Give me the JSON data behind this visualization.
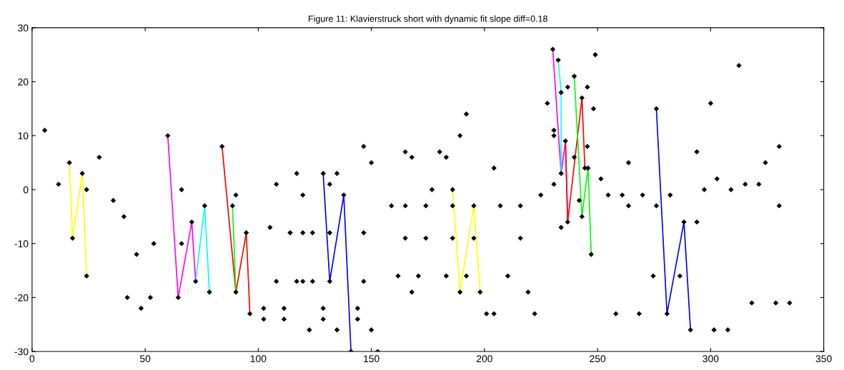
{
  "chart_data": {
    "type": "scatter",
    "title": "Figure 11: Klavierstruck short with dynamic fit slope diff=0.18",
    "xlim": [
      0,
      350
    ],
    "ylim": [
      -30,
      30
    ],
    "xticks": [
      0,
      50,
      100,
      150,
      200,
      250,
      300,
      350
    ],
    "yticks": [
      -30,
      -20,
      -10,
      0,
      10,
      20,
      30
    ],
    "grid": false,
    "legend": false,
    "series": [
      {
        "marker": "diamond",
        "color": "#000000",
        "x": [
          5.6,
          11.7,
          16.5,
          17.9,
          22.2,
          24.1,
          24.1,
          29.7,
          35.9,
          40.6,
          42.1,
          46.2,
          48.2,
          52.3,
          53.8,
          60,
          64.6,
          70.6,
          72.3,
          66.1,
          66.1,
          76.3,
          78.4,
          84,
          90.1,
          94.7,
          96.3,
          88.6,
          90.1,
          102.4,
          102.4,
          105.2,
          108,
          108,
          111.4,
          111.4,
          114.1,
          117,
          119.7,
          119.7,
          117,
          119.7,
          122.6,
          124,
          124,
          128.7,
          131.6,
          137.8,
          141,
          131.6,
          131.6,
          128.7,
          128.7,
          134.8,
          134.8,
          143.9,
          143.9,
          146.6,
          146.6,
          146.6,
          150,
          150,
          152.8,
          158.9,
          161.8,
          165,
          165,
          165,
          167.9,
          167.9,
          170.8,
          174.1,
          174.1,
          176.8,
          180.2,
          183.1,
          183.1,
          185.9,
          189.2,
          195.3,
          198.1,
          185.9,
          185.9,
          189.2,
          192,
          192,
          195.3,
          200.9,
          204.2,
          204.2,
          207,
          210.3,
          215.9,
          215.9,
          219.3,
          222.2,
          224.9,
          227.8,
          230.2,
          232.6,
          233.9,
          233.9,
          235.8,
          236.8,
          230.7,
          230.7,
          230.7,
          233.9,
          236.8,
          239.7,
          241.9,
          243.1,
          243.1,
          244.4,
          245.5,
          245.5,
          245.8,
          247.2,
          239.7,
          248.2,
          249,
          251.5,
          254.7,
          260.9,
          263.7,
          263.7,
          258.1,
          268.4,
          269.9,
          274.6,
          276,
          276,
          280.7,
          288.2,
          291.1,
          282.1,
          286.4,
          293.9,
          293.9,
          297.2,
          300,
          301.5,
          302.8,
          307.6,
          309,
          312.5,
          315.3,
          318.2,
          321.3,
          324.2,
          328.8,
          330.3,
          330.3,
          334.9
        ],
        "values": [
          11,
          1,
          5,
          -9,
          3,
          -16,
          0,
          6,
          -2,
          -5,
          -20,
          -12,
          -22,
          -20,
          -10,
          10,
          -20,
          -6,
          -17,
          0,
          -10,
          -3,
          -19,
          8,
          -19,
          -8,
          -23,
          -3,
          -1,
          -22,
          -24,
          -7,
          1,
          -17,
          -22,
          -24,
          -8,
          3,
          -1,
          -8,
          -17,
          -17,
          -26,
          -8,
          -17,
          3,
          -17,
          -1,
          -30,
          1,
          -8,
          -22,
          -24,
          3,
          -26,
          -22,
          -24,
          8,
          -8,
          -17,
          5,
          -26,
          -30,
          -3,
          -16,
          7,
          -3,
          -9,
          6,
          -19,
          -16,
          -3,
          -9,
          0,
          7,
          6,
          -16,
          0,
          -19,
          -3,
          -19,
          -3,
          -9,
          10,
          14,
          -16,
          -9,
          -23,
          -23,
          4,
          -3,
          -16,
          -3,
          -9,
          -19,
          -23,
          -1,
          16,
          26,
          24,
          18,
          3,
          9,
          -6,
          11,
          10,
          1,
          -7,
          19,
          6,
          -2,
          -5,
          17,
          4,
          19,
          8,
          4,
          -12,
          21,
          15,
          25,
          2,
          -1,
          -1,
          5,
          -3,
          -23,
          -23,
          -1,
          -16,
          -3,
          15,
          -23,
          -6,
          -26,
          -1,
          -16,
          7,
          -6,
          0,
          16,
          -26,
          2,
          -26,
          0,
          23,
          1,
          -21,
          1,
          5,
          -21,
          8,
          -3,
          -21
        ]
      },
      {
        "type": "line",
        "marker": "none",
        "color": "#ffff00",
        "x": [
          16.5,
          17.9,
          22.2,
          24.1
        ],
        "values": [
          5,
          -9,
          3,
          -16
        ]
      },
      {
        "type": "line",
        "marker": "none",
        "color": "#ff00ff",
        "x": [
          60,
          64.6,
          70.6,
          72.3
        ],
        "values": [
          10,
          -20,
          -6,
          -17
        ]
      },
      {
        "type": "line",
        "marker": "none",
        "color": "#00ffff",
        "x": [
          72.3,
          76.3,
          78.4
        ],
        "values": [
          -17,
          -3,
          -19
        ]
      },
      {
        "type": "line",
        "marker": "none",
        "color": "#ff0000",
        "x": [
          84,
          90.1,
          94.7,
          96.3
        ],
        "values": [
          8,
          -19,
          -8,
          -23
        ]
      },
      {
        "type": "line",
        "marker": "none",
        "color": "#00ff00",
        "x": [
          88.6,
          90.1
        ],
        "values": [
          -3,
          -19
        ]
      },
      {
        "type": "line",
        "marker": "none",
        "color": "#0000ff",
        "x": [
          128.7,
          131.6,
          137.8,
          141
        ],
        "values": [
          3,
          -17,
          -1,
          -30
        ]
      },
      {
        "type": "line",
        "marker": "none",
        "color": "#ffff00",
        "x": [
          185.9,
          189.2,
          195.3,
          198.1
        ],
        "values": [
          0,
          -19,
          -3,
          -19
        ]
      },
      {
        "type": "line",
        "marker": "none",
        "color": "#ff00ff",
        "x": [
          230.2,
          233.9,
          235.8,
          236.8
        ],
        "values": [
          26,
          3,
          9,
          -6
        ]
      },
      {
        "type": "line",
        "marker": "none",
        "color": "#00ffff",
        "x": [
          232.6,
          233.9,
          233.9
        ],
        "values": [
          24,
          18,
          3
        ]
      },
      {
        "type": "line",
        "marker": "none",
        "color": "#ff0000",
        "x": [
          235.8,
          236.8,
          243.1,
          244.4
        ],
        "values": [
          9,
          -6,
          17,
          4
        ]
      },
      {
        "type": "line",
        "marker": "none",
        "color": "#00ff00",
        "x": [
          239.7,
          243.1,
          245.8,
          247.2
        ],
        "values": [
          21,
          -5,
          4,
          -12
        ]
      },
      {
        "type": "line",
        "marker": "none",
        "color": "#0000ff",
        "x": [
          276,
          280.7,
          288.2,
          291.1
        ],
        "values": [
          15,
          -23,
          -6,
          -26
        ]
      }
    ]
  }
}
